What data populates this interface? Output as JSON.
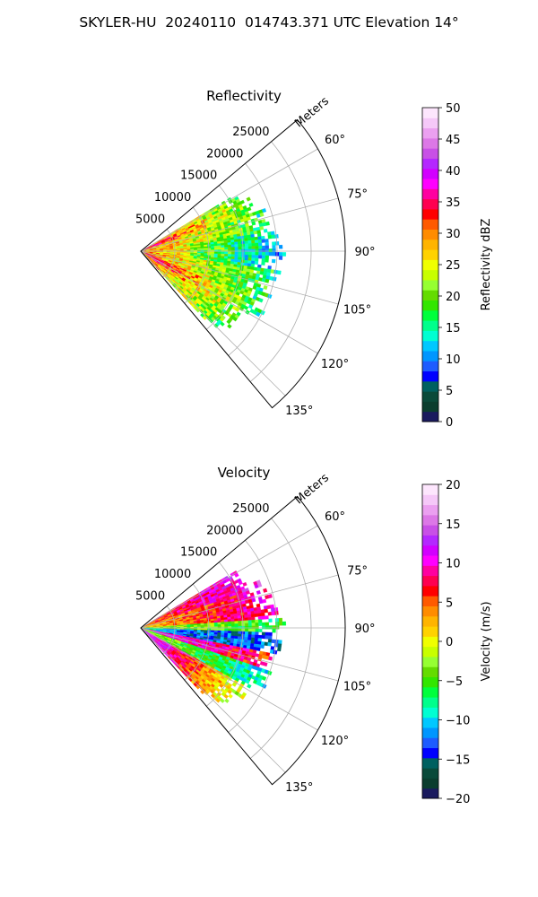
{
  "suptitle": "SKYLER-HU  20240110  014743.371 UTC Elevation 14°",
  "chart_data": [
    {
      "type": "heatmap",
      "projection": "polar sector",
      "title": "Reflectivity",
      "range_axis_label": "Meters",
      "range_ticks": [
        5000,
        10000,
        15000,
        20000,
        25000
      ],
      "range_tick_labels": [
        "5000",
        "10000",
        "15000",
        "20000",
        "25000"
      ],
      "range_max": 30000,
      "azimuth_range_deg": [
        50,
        140
      ],
      "azimuth_ticks": [
        "60°",
        "75°",
        "90°",
        "105°",
        "120°",
        "135°"
      ],
      "azimuth_tick_values": [
        60,
        75,
        90,
        105,
        120,
        135
      ],
      "grid": true,
      "field": "reflectivity",
      "data_extent_m": 20000,
      "colorbar": {
        "label": "Reflectivity dBZ",
        "min": 0,
        "max": 50,
        "ticks": [
          0,
          5,
          10,
          15,
          20,
          25,
          30,
          35,
          40,
          45,
          50
        ],
        "tick_labels": [
          "0",
          "5",
          "10",
          "15",
          "20",
          "25",
          "30",
          "35",
          "40",
          "45",
          "50"
        ],
        "colors": [
          "#1a1a5e",
          "#0b3d2e",
          "#0a4a3a",
          "#006060",
          "#0000ff",
          "#1e5cff",
          "#0096ff",
          "#00c8ff",
          "#00ffd2",
          "#00ff8c",
          "#00ff3c",
          "#32e600",
          "#64dc00",
          "#96ff32",
          "#c8ff00",
          "#f0ff00",
          "#ffd200",
          "#ffb400",
          "#ff8c00",
          "#ff5a00",
          "#ff0000",
          "#ff0050",
          "#ff00a0",
          "#ff00ff",
          "#d200ff",
          "#b428ff",
          "#c850e6",
          "#dc78e6",
          "#eba0f0",
          "#f5c8f8",
          "#fde6fd"
        ]
      }
    },
    {
      "type": "heatmap",
      "projection": "polar sector",
      "title": "Velocity",
      "range_axis_label": "Meters",
      "range_ticks": [
        5000,
        10000,
        15000,
        20000,
        25000
      ],
      "range_tick_labels": [
        "5000",
        "10000",
        "15000",
        "20000",
        "25000"
      ],
      "range_max": 30000,
      "azimuth_range_deg": [
        50,
        140
      ],
      "azimuth_ticks": [
        "60°",
        "75°",
        "90°",
        "105°",
        "120°",
        "135°"
      ],
      "azimuth_tick_values": [
        60,
        75,
        90,
        105,
        120,
        135
      ],
      "grid": true,
      "field": "velocity",
      "data_extent_m": 20000,
      "colorbar": {
        "label": "Velocity (m/s)",
        "min": -20,
        "max": 20,
        "ticks": [
          -20,
          -15,
          -10,
          -5,
          0,
          5,
          10,
          15,
          20
        ],
        "tick_labels": [
          "−20",
          "−15",
          "−10",
          "−5",
          "0",
          "5",
          "10",
          "15",
          "20"
        ],
        "colors": [
          "#1a1a5e",
          "#0b3d2e",
          "#0a4a3a",
          "#006060",
          "#0000ff",
          "#1e5cff",
          "#0096ff",
          "#00c8ff",
          "#00ffd2",
          "#00ff8c",
          "#00ff3c",
          "#32e600",
          "#64dc00",
          "#96ff32",
          "#c8ff00",
          "#f0ff00",
          "#ffd200",
          "#ffb400",
          "#ff8c00",
          "#ff5a00",
          "#ff0000",
          "#ff0050",
          "#ff00a0",
          "#ff00ff",
          "#d200ff",
          "#b428ff",
          "#c850e6",
          "#dc78e6",
          "#eba0f0",
          "#f5c8f8",
          "#fde6fd"
        ]
      }
    }
  ]
}
